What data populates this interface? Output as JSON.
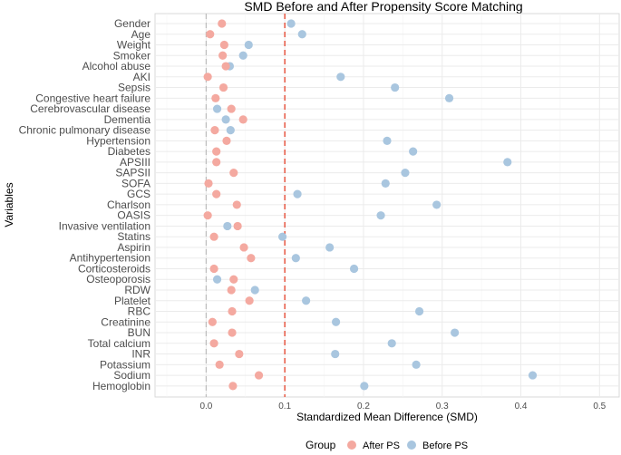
{
  "chart_data": {
    "type": "scatter",
    "title": "SMD Before and After Propensity Score Matching",
    "xlabel": "Standardized Mean Difference (SMD)",
    "ylabel": "Variables",
    "xlim": [
      -0.065,
      0.525
    ],
    "xticks": [
      0.0,
      0.1,
      0.2,
      0.3,
      0.4,
      0.5
    ],
    "xtick_labels": [
      "0.0",
      "0.1",
      "0.2",
      "0.3",
      "0.4",
      "0.5"
    ],
    "reference_lines": [
      {
        "x": 0.0,
        "style": "dashed",
        "color": "#bdbdbd"
      },
      {
        "x": 0.1,
        "style": "dashed",
        "color": "#e8624f"
      }
    ],
    "grid": true,
    "legend": {
      "title": "Group",
      "position": "bottom",
      "entries": [
        {
          "name": "After PS",
          "color": "#f4a9a0"
        },
        {
          "name": "Before PS",
          "color": "#a9c6df"
        }
      ]
    },
    "categories": [
      "Gender",
      "Age",
      "Weight",
      "Smoker",
      "Alcohol abuse",
      "AKI",
      "Sepsis",
      "Congestive heart failure",
      "Cerebrovascular disease",
      "Dementia",
      "Chronic pulmonary disease",
      "Hypertension",
      "Diabetes",
      "APSIII",
      "SAPSII",
      "SOFA",
      "GCS",
      "Charlson",
      "OASIS",
      "Invasive ventilation",
      "Statins",
      "Aspirin",
      "Antihypertension",
      "Corticosteroids",
      "Osteoporosis",
      "RDW",
      "Platelet",
      "RBC",
      "Creatinine",
      "BUN",
      "Total calcium",
      "INR",
      "Potassium",
      "Sodium",
      "Hemoglobin"
    ],
    "series": [
      {
        "name": "Before PS",
        "color": "#a9c6df",
        "values": [
          0.108,
          0.122,
          0.054,
          0.047,
          0.03,
          0.171,
          0.24,
          0.309,
          0.014,
          0.025,
          0.031,
          0.23,
          0.263,
          0.383,
          0.253,
          0.228,
          0.116,
          0.293,
          0.222,
          0.027,
          0.097,
          0.157,
          0.114,
          0.188,
          0.014,
          0.062,
          0.127,
          0.271,
          0.165,
          0.316,
          0.236,
          0.164,
          0.267,
          0.415,
          0.201
        ]
      },
      {
        "name": "After PS",
        "color": "#f4a9a0",
        "values": [
          0.02,
          0.005,
          0.023,
          0.021,
          0.025,
          0.002,
          0.022,
          0.012,
          0.032,
          0.047,
          0.011,
          0.026,
          0.013,
          0.013,
          0.035,
          0.003,
          0.013,
          0.039,
          0.002,
          0.04,
          0.01,
          0.048,
          0.057,
          0.01,
          0.035,
          0.032,
          0.055,
          0.033,
          0.008,
          0.033,
          0.01,
          0.042,
          0.017,
          0.067,
          0.034
        ]
      }
    ]
  }
}
